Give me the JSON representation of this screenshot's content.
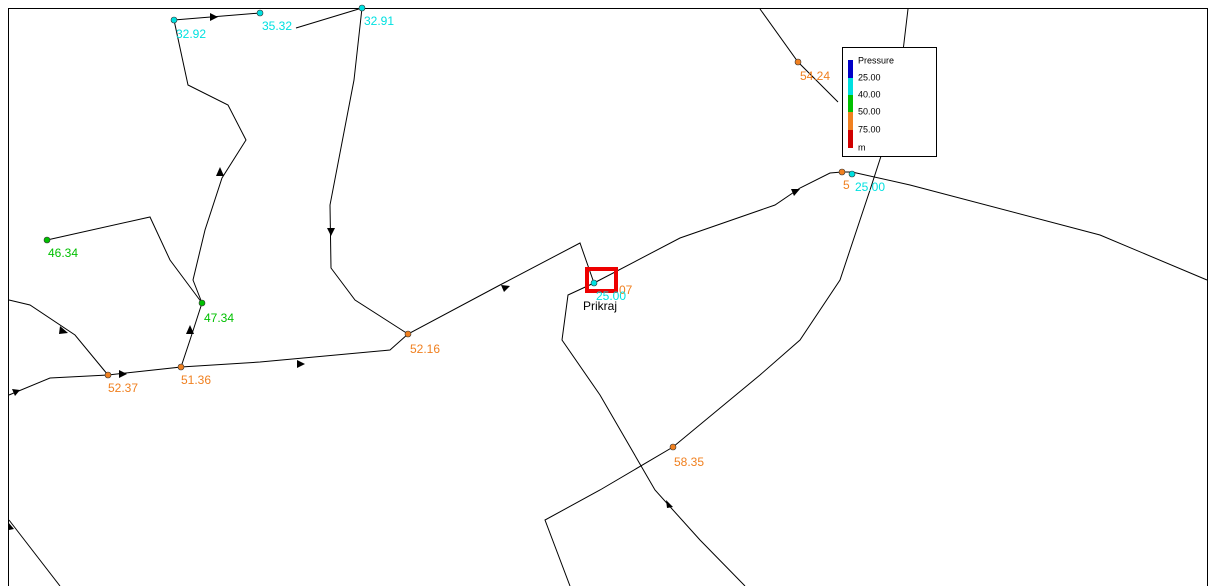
{
  "nodes": [
    {
      "label": "32.92"
    },
    {
      "label": "35.32"
    },
    {
      "label": "32.91"
    },
    {
      "label": "54.24"
    },
    {
      "label": "5"
    },
    {
      "label": "25.00"
    },
    {
      "label": "46.34"
    },
    {
      "label": "47.34"
    },
    {
      "label": "52.16"
    },
    {
      "label": "52.37"
    },
    {
      "label": "51.36"
    },
    {
      "label": "58.35"
    },
    {
      "label": "25.00"
    },
    {
      "label": "07"
    }
  ],
  "site_label": "Prikraj",
  "legend": {
    "title": "Pressure",
    "entries": [
      "25.00",
      "40.00",
      "50.00",
      "75.00"
    ],
    "unit": "m"
  }
}
